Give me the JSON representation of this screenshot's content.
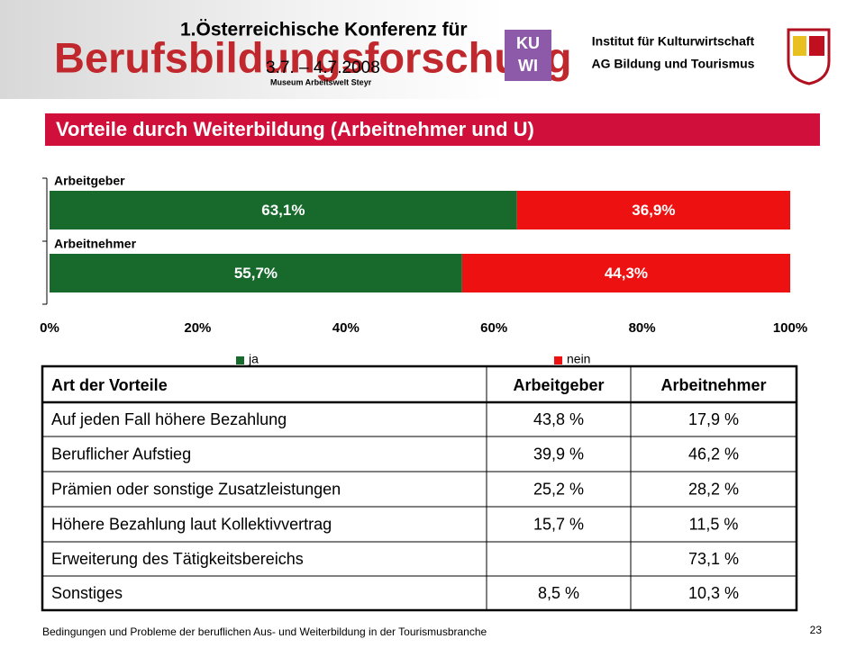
{
  "header": {
    "conference": "1.Österreichische Konferenz für",
    "name": "Berufsbildungsforschung",
    "date": "3.7. – 4.7.2008",
    "venue": "Museum Arbeitswelt Steyr",
    "logo": [
      "KU",
      "WI"
    ],
    "institute": [
      "Institut für Kulturwirtschaft",
      "AG Bildung und Tourismus"
    ]
  },
  "slide_title": "Vorteile durch Weiterbildung (Arbeitnehmer und U)",
  "chart_data": {
    "type": "stacked-barh",
    "categories": [
      "Arbeitgeber",
      "Arbeitnehmer"
    ],
    "series": [
      {
        "name": "ja",
        "color": "#176a2c",
        "values": [
          63.1,
          55.7
        ],
        "value_labels": [
          "63,1%",
          "55,7%"
        ]
      },
      {
        "name": "nein",
        "color": "#ee1111",
        "values": [
          36.9,
          44.3
        ],
        "value_labels": [
          "36,9%",
          "44,3%"
        ]
      }
    ],
    "xlim": [
      0,
      100
    ],
    "xticks": [
      {
        "value": 0,
        "label": "0%"
      },
      {
        "value": 20,
        "label": "20%"
      },
      {
        "value": 40,
        "label": "40%"
      },
      {
        "value": 60,
        "label": "60%"
      },
      {
        "value": 80,
        "label": "80%"
      },
      {
        "value": 100,
        "label": "100%"
      }
    ],
    "legend": "bottom"
  },
  "table": {
    "header": [
      "Art der Vorteile",
      "Arbeitgeber",
      "Arbeitnehmer"
    ],
    "rows": [
      [
        "Auf jeden Fall höhere Bezahlung",
        "43,8 %",
        "17,9 %"
      ],
      [
        "Beruflicher Aufstieg",
        "39,9 %",
        "46,2 %"
      ],
      [
        "Prämien oder sonstige Zusatzleistungen",
        "25,2 %",
        "28,2 %"
      ],
      [
        "Höhere Bezahlung laut Kollektivvertrag",
        "15,7 %",
        "11,5 %"
      ],
      [
        "Erweiterung des Tätigkeitsbereichs",
        null,
        "73,1 %"
      ],
      [
        "Sonstiges",
        "8,5 %",
        "10,3 %"
      ]
    ]
  },
  "footer": {
    "text": "Bedingungen und Probleme der beruflichen Aus- und Weiterbildung in der Tourismusbranche",
    "page": "23"
  }
}
